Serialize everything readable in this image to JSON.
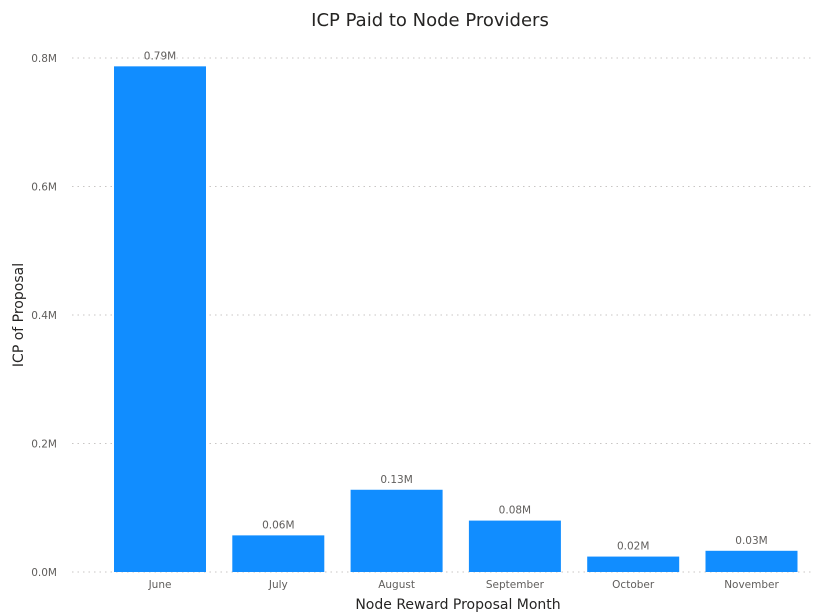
{
  "chart_data": {
    "type": "bar",
    "title": "ICP Paid to Node Providers",
    "xlabel": "Node Reward Proposal Month",
    "ylabel": "ICP of Proposal",
    "categories": [
      "June",
      "July",
      "August",
      "September",
      "October",
      "November"
    ],
    "values": [
      787000,
      57000,
      128000,
      80000,
      24000,
      33000
    ],
    "data_labels": [
      "0.79M",
      "0.06M",
      "0.13M",
      "0.08M",
      "0.02M",
      "0.03M"
    ],
    "yticks": [
      0,
      200000,
      400000,
      600000,
      800000
    ],
    "ytick_labels": [
      "0.0M",
      "0.2M",
      "0.4M",
      "0.6M",
      "0.8M"
    ],
    "ylim": [
      0,
      800000
    ],
    "grid": true,
    "legend": "none",
    "bar_color": "#118dff"
  }
}
